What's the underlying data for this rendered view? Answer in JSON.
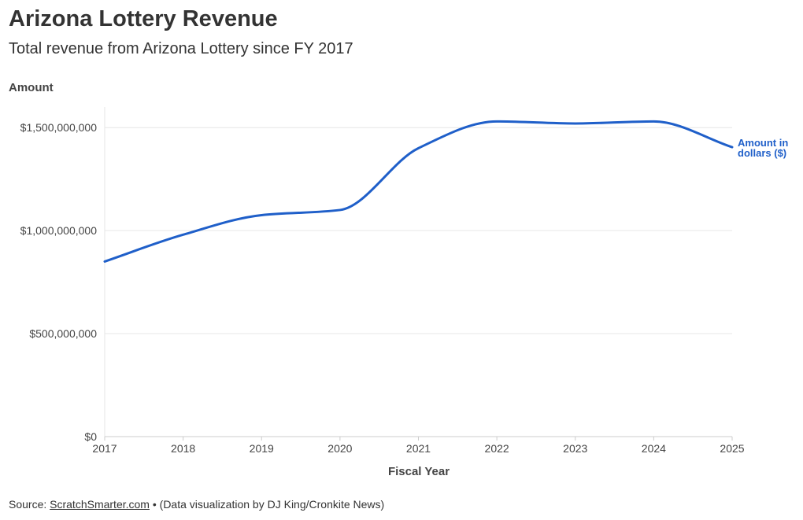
{
  "header": {
    "title": "Arizona Lottery Revenue",
    "subtitle": "Total revenue from Arizona Lottery since FY 2017"
  },
  "footer": {
    "source_prefix": "Source: ",
    "source_link": "ScratchSmarter.com",
    "bullet": " • ",
    "credit": "(Data visualization by DJ King/Cronkite News)"
  },
  "colors": {
    "line": "#1f5fc9",
    "grid": "#e6e6e6",
    "text": "#333333"
  },
  "chart_data": {
    "type": "line",
    "title": "Arizona Lottery Revenue",
    "subtitle": "Total revenue from Arizona Lottery since FY 2017",
    "xlabel": "Fiscal Year",
    "ylabel": "Amount",
    "x": [
      2017,
      2018,
      2019,
      2020,
      2021,
      2022,
      2023,
      2024,
      2025
    ],
    "x_tick_labels": [
      "2017",
      "2018",
      "2019",
      "2020",
      "2021",
      "2022",
      "2023",
      "2024",
      "2025"
    ],
    "y_ticks": [
      0,
      500000000,
      1000000000,
      1500000000
    ],
    "y_tick_labels": [
      "$0",
      "$500,000,000",
      "$1,000,000,000",
      "$1,500,000,000"
    ],
    "ylim": [
      0,
      1600000000
    ],
    "xlim": [
      2017,
      2025
    ],
    "grid": true,
    "series": [
      {
        "name_lines": [
          "Amount in",
          "dollars ($)"
        ],
        "color": "#1f5fc9",
        "values": [
          850000000,
          980000000,
          1075000000,
          1100000000,
          1400000000,
          1530000000,
          1520000000,
          1530000000,
          1405000000
        ]
      }
    ]
  }
}
